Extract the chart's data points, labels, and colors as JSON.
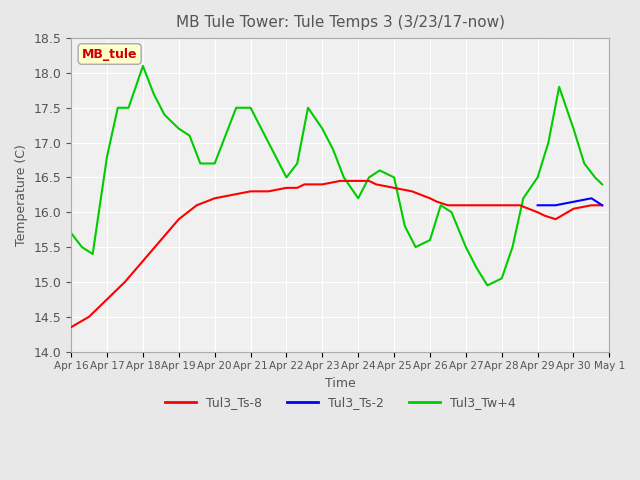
{
  "title": "MB Tule Tower: Tule Temps 3 (3/23/17-now)",
  "xlabel": "Time",
  "ylabel": "Temperature (C)",
  "ylim": [
    14.0,
    18.5
  ],
  "yticks": [
    14.0,
    14.5,
    15.0,
    15.5,
    16.0,
    16.5,
    17.0,
    17.5,
    18.0,
    18.5
  ],
  "xtick_labels": [
    "Apr 16",
    "Apr 17",
    "Apr 18",
    "Apr 19",
    "Apr 20",
    "Apr 21",
    "Apr 22",
    "Apr 23",
    "Apr 24",
    "Apr 25",
    "Apr 26",
    "Apr 27",
    "Apr 28",
    "Apr 29",
    "Apr 30",
    "May 1"
  ],
  "legend_entries": [
    "Tul3_Ts-8",
    "Tul3_Ts-2",
    "Tul3_Tw+4"
  ],
  "legend_colors": [
    "#ff0000",
    "#0000ff",
    "#00cc00"
  ],
  "annotation_box": "MB_tule",
  "annotation_color": "#cc0000",
  "bg_color": "#e8e8e8",
  "plot_bg": "#f0f0f0",
  "grid_color": "#ffffff",
  "title_color": "#555555",
  "axis_label_color": "#555555",
  "tick_label_color": "#555555",
  "red_x": [
    0,
    0.5,
    1.0,
    1.5,
    2.0,
    2.5,
    3.0,
    3.5,
    4.0,
    4.5,
    5.0,
    5.5,
    6.0,
    6.3,
    6.5,
    7.0,
    7.5,
    8.0,
    8.3,
    8.5,
    9.0,
    9.5,
    10.0,
    10.2,
    10.5,
    11.0,
    11.5,
    12.0,
    12.5,
    13.0,
    13.2,
    13.5,
    14.0,
    14.5,
    14.8
  ],
  "red_y": [
    14.35,
    14.5,
    14.75,
    15.0,
    15.3,
    15.6,
    15.9,
    16.1,
    16.2,
    16.25,
    16.3,
    16.3,
    16.35,
    16.35,
    16.4,
    16.4,
    16.45,
    16.45,
    16.45,
    16.4,
    16.35,
    16.3,
    16.2,
    16.15,
    16.1,
    16.1,
    16.1,
    16.1,
    16.1,
    16.0,
    15.95,
    15.9,
    16.05,
    16.1,
    16.1
  ],
  "blue_x": [
    13.0,
    13.2,
    13.5,
    14.0,
    14.5,
    14.8
  ],
  "blue_y": [
    16.1,
    16.1,
    16.1,
    16.15,
    16.2,
    16.1
  ],
  "green_x": [
    0,
    0.3,
    0.6,
    1.0,
    1.3,
    1.6,
    2.0,
    2.3,
    2.6,
    3.0,
    3.3,
    3.6,
    4.0,
    4.3,
    4.6,
    5.0,
    5.3,
    5.6,
    6.0,
    6.3,
    6.6,
    7.0,
    7.3,
    7.6,
    8.0,
    8.3,
    8.6,
    9.0,
    9.3,
    9.6,
    10.0,
    10.3,
    10.6,
    11.0,
    11.3,
    11.6,
    12.0,
    12.3,
    12.6,
    13.0,
    13.3,
    13.6,
    14.0,
    14.3,
    14.6,
    14.8
  ],
  "green_y": [
    15.7,
    15.5,
    15.4,
    16.8,
    17.5,
    17.5,
    18.1,
    17.7,
    17.4,
    17.2,
    17.1,
    16.7,
    16.7,
    17.1,
    17.5,
    17.5,
    17.2,
    16.9,
    16.5,
    16.7,
    17.5,
    17.2,
    16.9,
    16.5,
    16.2,
    16.5,
    16.6,
    16.5,
    15.8,
    15.5,
    15.6,
    16.1,
    16.0,
    15.5,
    15.2,
    14.95,
    15.05,
    15.5,
    16.2,
    16.5,
    17.0,
    17.8,
    17.2,
    16.7,
    16.5,
    16.4
  ]
}
